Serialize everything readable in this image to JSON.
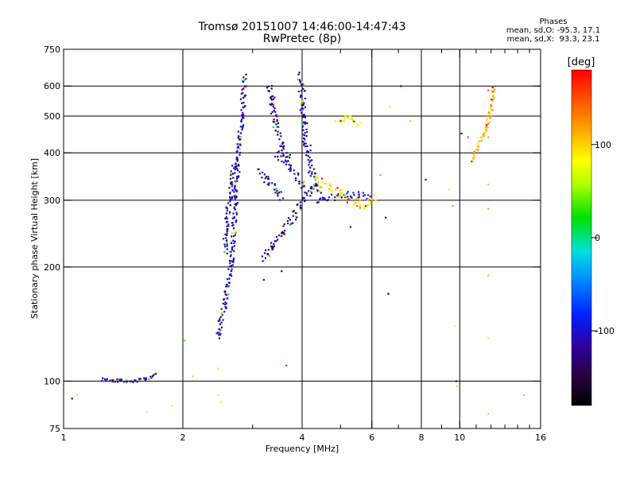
{
  "header": {
    "title": "Tromsø 20151007 14:46:00-14:47:43",
    "subtitle": "RwPretec (8p)"
  },
  "phase_info": {
    "heading": "Phases",
    "line_o": "mean, sd,O: -95.3, 17.1",
    "line_x": "mean, sd,X:  93.3, 23.1"
  },
  "colorbar": {
    "label": "[deg]",
    "range": [
      -180,
      180
    ],
    "ticks": [
      {
        "value": 100,
        "label": "100"
      },
      {
        "value": 0,
        "label": "0"
      },
      {
        "value": -100,
        "label": "-100"
      }
    ]
  },
  "chart_data": {
    "type": "scatter",
    "title": "Tromsø 20151007 14:46:00-14:47:43",
    "subtitle": "RwPretec (8p)",
    "xlabel": "Frequency [MHz]",
    "ylabel": "Stationary phase Virtual Height [km]",
    "x_scale": "log",
    "y_scale": "log",
    "xlim": [
      1,
      16
    ],
    "ylim": [
      75,
      750
    ],
    "x_ticks": [
      {
        "value": 1,
        "label": "1"
      },
      {
        "value": 2,
        "label": "2"
      },
      {
        "value": 4,
        "label": "4"
      },
      {
        "value": 6,
        "label": "6"
      },
      {
        "value": 8,
        "label": "8"
      },
      {
        "value": 10,
        "label": "10"
      },
      {
        "value": 16,
        "label": "16"
      }
    ],
    "x_minor_unlabeled": [
      3,
      5,
      7,
      9,
      11,
      12,
      13,
      14,
      15
    ],
    "y_ticks": [
      {
        "value": 75,
        "label": "75"
      },
      {
        "value": 100,
        "label": "100"
      },
      {
        "value": 200,
        "label": "200"
      },
      {
        "value": 300,
        "label": "300"
      },
      {
        "value": 400,
        "label": "400"
      },
      {
        "value": 500,
        "label": "500"
      },
      {
        "value": 600,
        "label": "600"
      },
      {
        "value": 750,
        "label": "750"
      }
    ],
    "x_grid": [
      2,
      4,
      6,
      8,
      10
    ],
    "y_grid": [
      100,
      200,
      300,
      400,
      500,
      600
    ],
    "grid": true,
    "color_encoding": "phase (deg)",
    "traces": [
      {
        "name": "",
        "phase": -115,
        "spread": 2,
        "points": [
          [
            1.25,
            101
          ],
          [
            1.35,
            100.5
          ],
          [
            1.45,
            100
          ],
          [
            1.55,
            100.5
          ],
          [
            1.65,
            102
          ],
          [
            1.72,
            104
          ]
        ]
      },
      {
        "name": "",
        "phase": -110,
        "spread": 3,
        "points": [
          [
            2.45,
            130
          ],
          [
            2.52,
            150
          ],
          [
            2.58,
            170
          ],
          [
            2.64,
            200
          ],
          [
            2.68,
            240
          ],
          [
            2.72,
            300
          ],
          [
            2.76,
            380
          ],
          [
            2.8,
            460
          ],
          [
            2.84,
            560
          ],
          [
            2.86,
            640
          ]
        ]
      },
      {
        "name": "",
        "phase": -120,
        "spread": 3,
        "points": [
          [
            2.55,
            220
          ],
          [
            2.6,
            280
          ],
          [
            2.66,
            340
          ],
          [
            2.7,
            380
          ]
        ]
      },
      {
        "name": "",
        "phase": -115,
        "spread": 4,
        "points": [
          [
            3.1,
            360
          ],
          [
            3.25,
            340
          ],
          [
            3.45,
            320
          ],
          [
            3.55,
            300
          ]
        ]
      },
      {
        "name": "",
        "phase": -120,
        "spread": 4,
        "points": [
          [
            3.3,
            600
          ],
          [
            3.4,
            500
          ],
          [
            3.5,
            440
          ],
          [
            3.6,
            400
          ],
          [
            3.75,
            380
          ]
        ]
      },
      {
        "name": "",
        "phase": -125,
        "spread": 4,
        "points": [
          [
            3.2,
            210
          ],
          [
            3.45,
            235
          ],
          [
            3.7,
            260
          ],
          [
            3.95,
            290
          ],
          [
            4.15,
            315
          ],
          [
            4.4,
            335
          ]
        ]
      },
      {
        "name": "",
        "phase": -115,
        "spread": 4,
        "points": [
          [
            3.45,
            400
          ],
          [
            3.7,
            370
          ],
          [
            3.95,
            340
          ],
          [
            4.1,
            320
          ]
        ]
      },
      {
        "name": "",
        "phase": -110,
        "spread": 4,
        "points": [
          [
            3.95,
            640
          ],
          [
            4.0,
            560
          ],
          [
            4.05,
            480
          ],
          [
            4.12,
            420
          ],
          [
            4.2,
            370
          ],
          [
            4.3,
            330
          ],
          [
            4.45,
            310
          ]
        ]
      },
      {
        "name": "",
        "phase": -105,
        "spread": 4,
        "points": [
          [
            4.35,
            300
          ],
          [
            4.7,
            305
          ],
          [
            5.1,
            310
          ],
          [
            5.5,
            310
          ],
          [
            5.9,
            305
          ]
        ]
      },
      {
        "name": "",
        "phase": 80,
        "spread": 3,
        "points": [
          [
            4.9,
            480
          ],
          [
            5.2,
            500
          ],
          [
            5.4,
            490
          ],
          [
            5.6,
            470
          ]
        ]
      },
      {
        "name": "",
        "phase": 90,
        "spread": 5,
        "points": [
          [
            4.3,
            340
          ],
          [
            4.8,
            320
          ],
          [
            5.3,
            300
          ],
          [
            5.8,
            290
          ],
          [
            6.1,
            310
          ]
        ]
      },
      {
        "name": "",
        "phase": 110,
        "spread": 2,
        "points": [
          [
            10.7,
            380
          ],
          [
            11.2,
            420
          ],
          [
            11.7,
            470
          ],
          [
            12.0,
            520
          ],
          [
            12.2,
            600
          ]
        ]
      }
    ],
    "scatter_points": [
      [
        1.05,
        90,
        -110
      ],
      [
        1.08,
        92,
        60
      ],
      [
        1.62,
        83,
        90
      ],
      [
        1.88,
        86,
        80
      ],
      [
        2.02,
        128,
        40
      ],
      [
        2.12,
        103,
        100
      ],
      [
        2.45,
        108,
        70
      ],
      [
        2.45,
        92,
        90
      ],
      [
        2.5,
        88,
        85
      ],
      [
        3.2,
        185,
        -120
      ],
      [
        3.55,
        195,
        -120
      ],
      [
        3.65,
        110,
        160
      ],
      [
        6.6,
        170,
        -170
      ],
      [
        7.1,
        600,
        -110
      ],
      [
        6.65,
        530,
        90
      ],
      [
        7.5,
        485,
        110
      ],
      [
        8.2,
        340,
        -100
      ],
      [
        9.4,
        320,
        90
      ],
      [
        9.6,
        290,
        40
      ],
      [
        9.7,
        140,
        80
      ],
      [
        9.8,
        100,
        -110
      ],
      [
        9.85,
        97,
        100
      ],
      [
        10.1,
        450,
        -120
      ],
      [
        10.5,
        440,
        140
      ],
      [
        11.8,
        585,
        150
      ],
      [
        11.8,
        440,
        120
      ],
      [
        11.8,
        330,
        50
      ],
      [
        11.8,
        285,
        110
      ],
      [
        11.8,
        190,
        110
      ],
      [
        11.8,
        130,
        90
      ],
      [
        11.8,
        82,
        100
      ],
      [
        14.5,
        92,
        50
      ],
      [
        6.3,
        350,
        40
      ],
      [
        6.5,
        270,
        -110
      ],
      [
        5.5,
        290,
        140
      ],
      [
        5.3,
        255,
        -90
      ]
    ]
  }
}
